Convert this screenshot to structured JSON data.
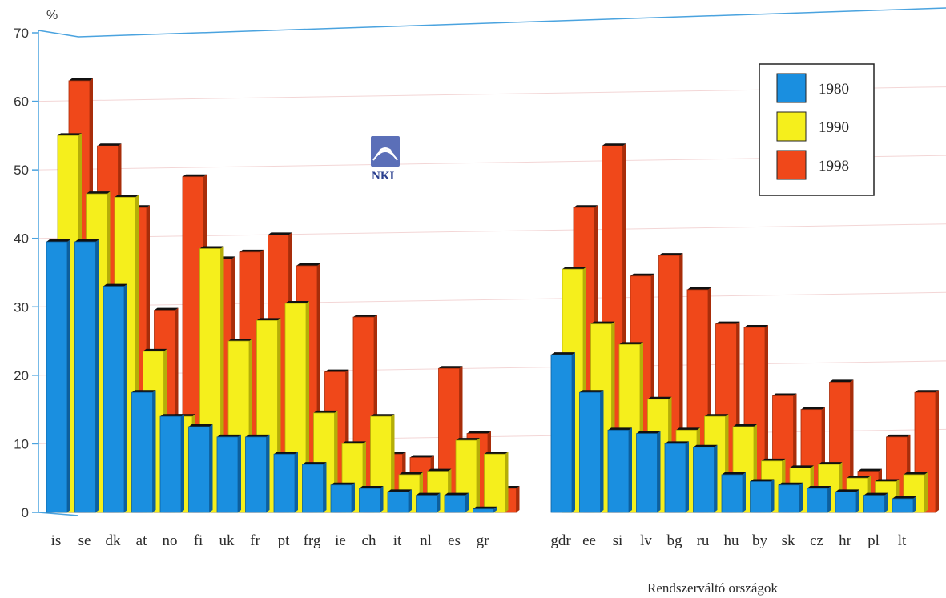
{
  "chart_data": {
    "type": "bar",
    "y_unit": "%",
    "ylim": [
      0,
      70
    ],
    "yticks": [
      0,
      10,
      20,
      30,
      40,
      50,
      60,
      70
    ],
    "grid": true,
    "legend_position": "top-right",
    "group_note": "Rendszerváltó országok",
    "logo_text": "NKI",
    "categories": [
      "is",
      "se",
      "dk",
      "at",
      "no",
      "fi",
      "uk",
      "fr",
      "pt",
      "frg",
      "ie",
      "ch",
      "it",
      "nl",
      "es",
      "gr",
      "gdr",
      "ee",
      "si",
      "lv",
      "bg",
      "ru",
      "hu",
      "by",
      "sk",
      "cz",
      "hr",
      "pl",
      "lt"
    ],
    "series": [
      {
        "name": "1980",
        "color": "#1a8fe0",
        "values": [
          39.5,
          39.5,
          33,
          17.5,
          14,
          12.5,
          11,
          11,
          8.5,
          7,
          4,
          3.5,
          3,
          2.5,
          2.5,
          0.5,
          23,
          17.5,
          12,
          11.5,
          10,
          9.5,
          5.5,
          4.5,
          4,
          3.5,
          3,
          2.5,
          2
        ]
      },
      {
        "name": "1990",
        "color": "#f5ef1c",
        "values": [
          55,
          46.5,
          46,
          23.5,
          14,
          38.5,
          25,
          28,
          30.5,
          14.5,
          10,
          14,
          5.5,
          6,
          10.5,
          8.5,
          35.5,
          27.5,
          24.5,
          16.5,
          12,
          14,
          12.5,
          7.5,
          6.5,
          7,
          5,
          4.5,
          5.5
        ]
      },
      {
        "name": "1998",
        "color": "#f0481a",
        "values": [
          63,
          53.5,
          44.5,
          29.5,
          49,
          37,
          38,
          40.5,
          36,
          20.5,
          28.5,
          8.5,
          8,
          21,
          11.5,
          3.5,
          44.5,
          53.5,
          34.5,
          37.5,
          32.5,
          27.5,
          27,
          17,
          15,
          19,
          6,
          11,
          17.5
        ]
      }
    ]
  }
}
